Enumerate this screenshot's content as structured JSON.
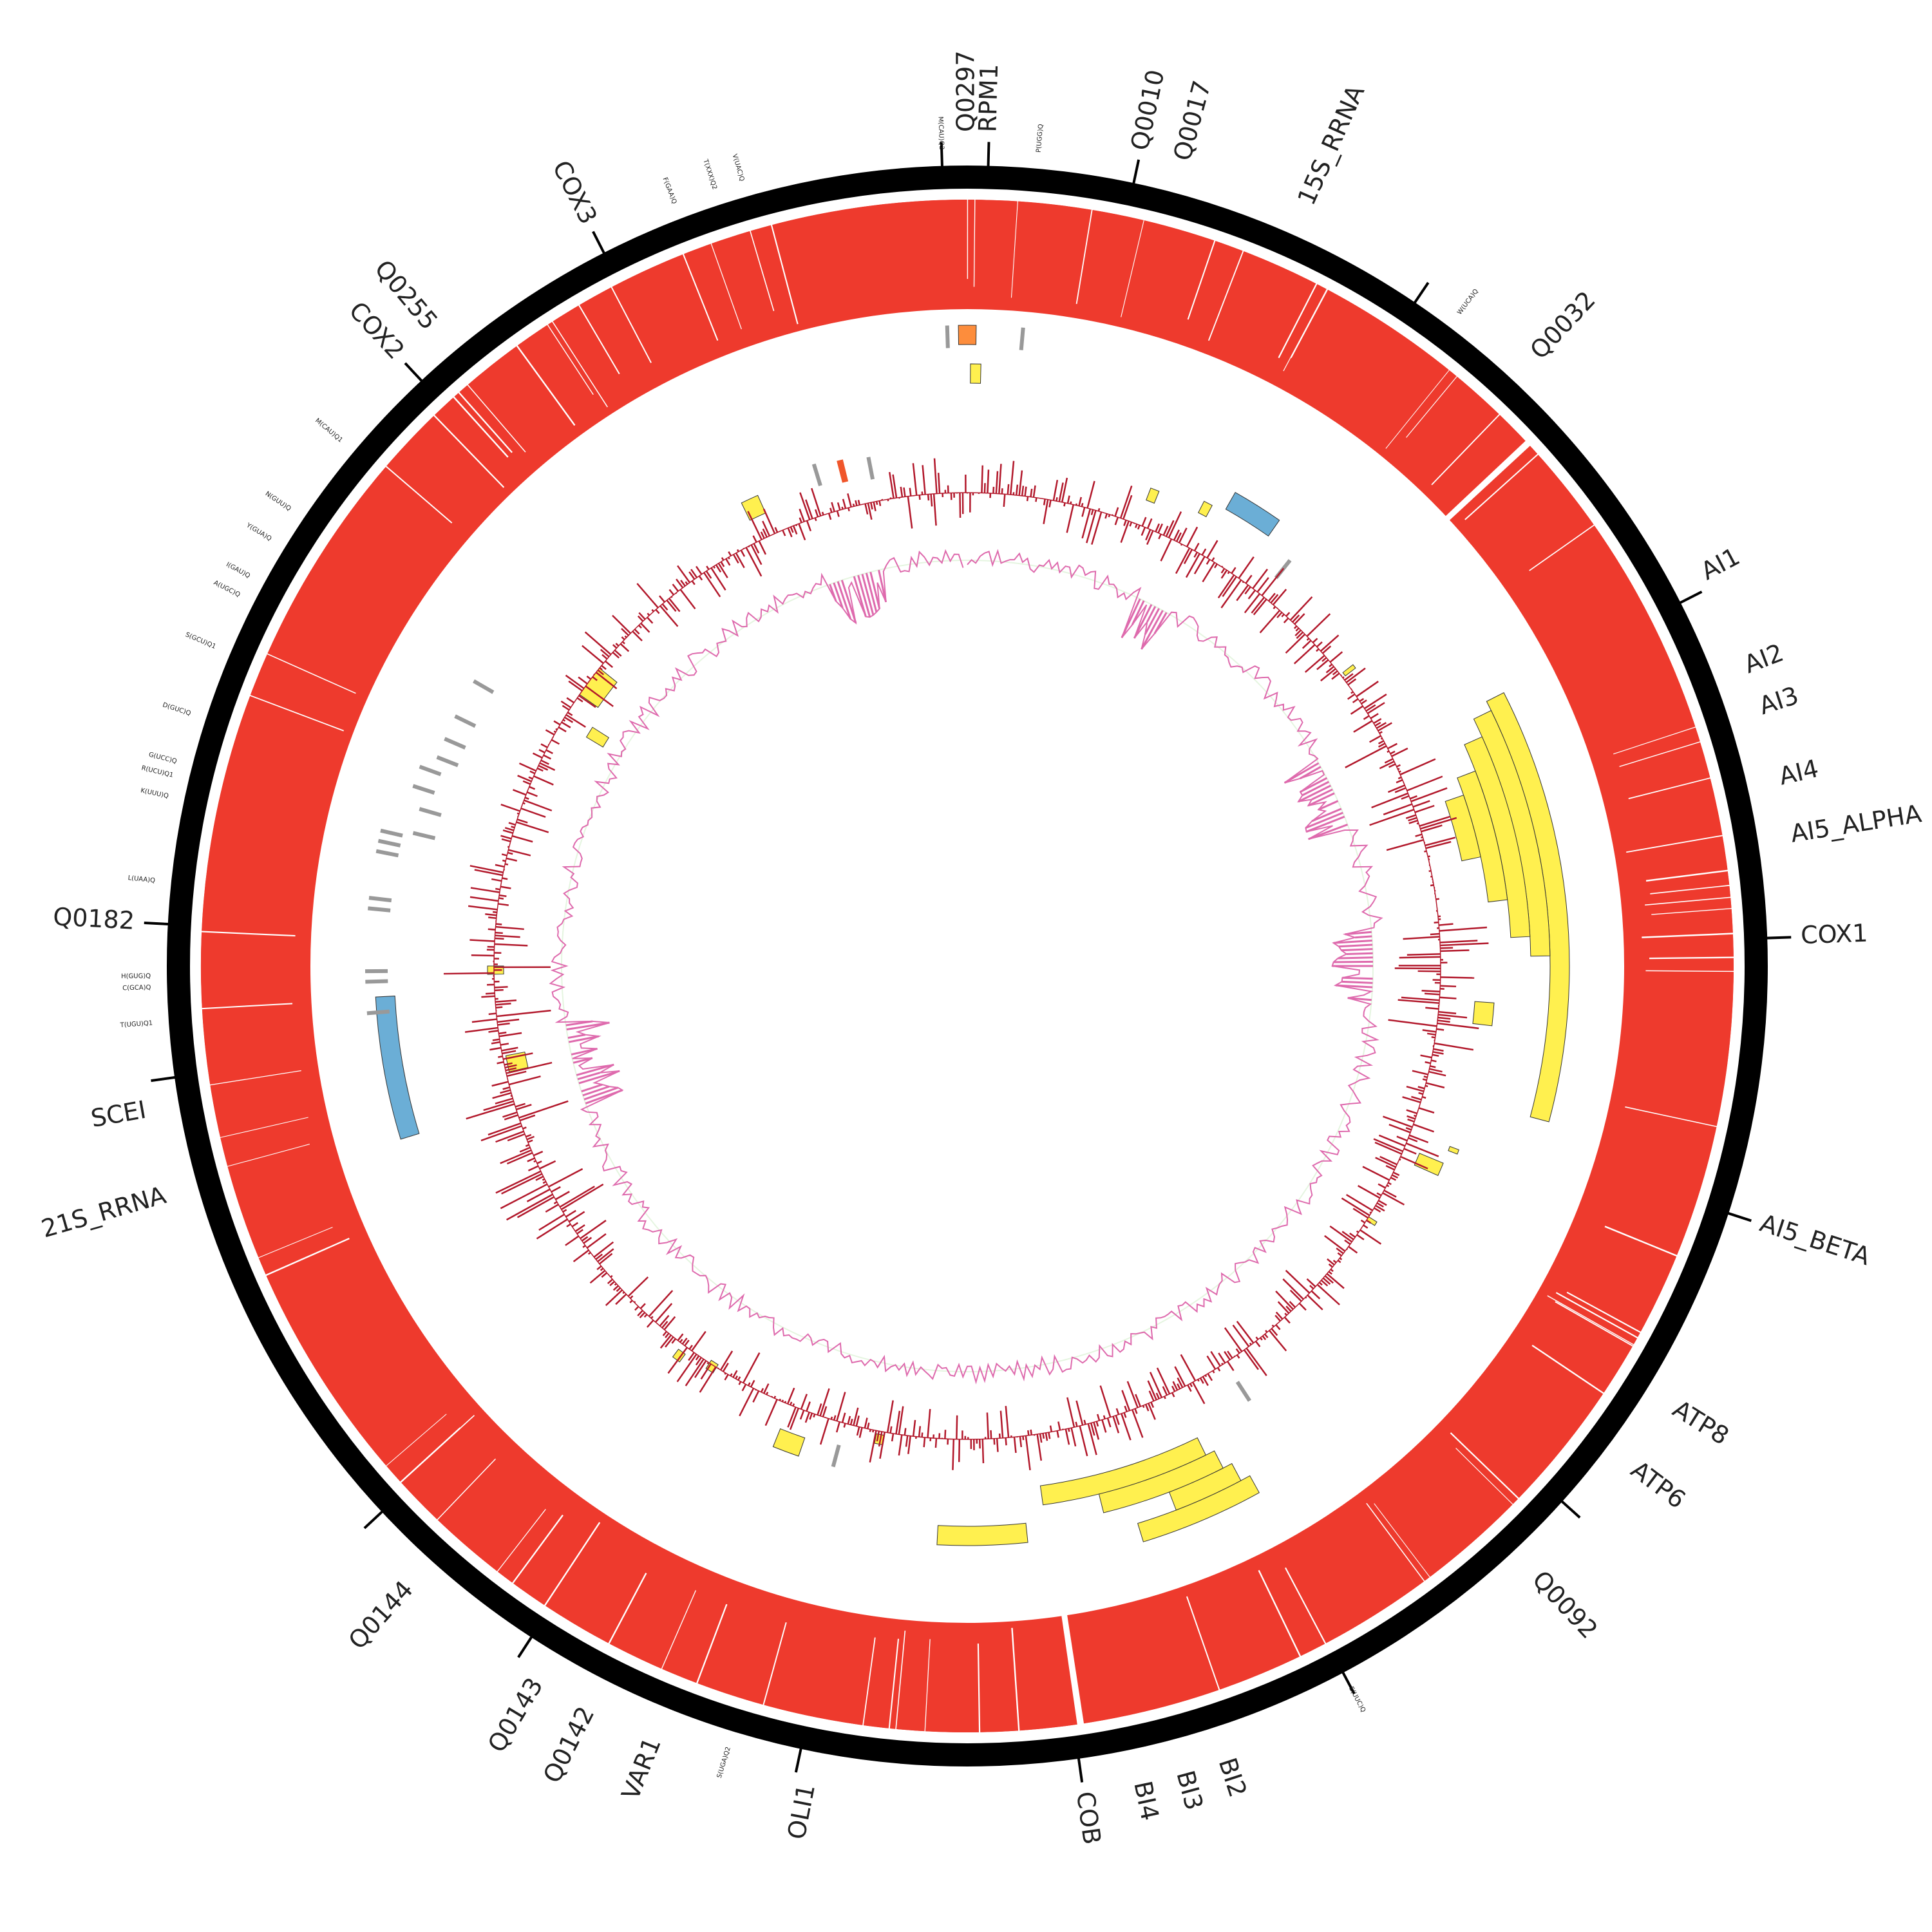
{
  "colors": {
    "ideogram": "#000000",
    "coverage": "#ee3a2d",
    "feature_yellow": "#fff04f",
    "feature_blue": "#6baed6",
    "feature_orange": "#fd8d3c",
    "feature_red": "#f0562b",
    "trna_mark": "#999999",
    "gc_skew": "#b2182b",
    "gc_content": "#de6aad",
    "gc_content_fill": "#e5f5e0"
  },
  "gene_labels": [
    {
      "text": "Q0297",
      "angle": 0
    },
    {
      "text": "RPM1",
      "angle": 1.5
    },
    {
      "text": "Q0010",
      "angle": 12
    },
    {
      "text": "Q0017",
      "angle": 15
    },
    {
      "text": "15S_RRNA",
      "angle": 24
    },
    {
      "text": "Q0032",
      "angle": 43
    },
    {
      "text": "AI1",
      "angle": 62
    },
    {
      "text": "AI2",
      "angle": 69
    },
    {
      "text": "AI3",
      "angle": 72
    },
    {
      "text": "AI4",
      "angle": 77
    },
    {
      "text": "AI5_ALPHA",
      "angle": 81
    },
    {
      "text": "COX1",
      "angle": 88
    },
    {
      "text": "AI5_BETA",
      "angle": 108
    },
    {
      "text": "ATP8",
      "angle": 122
    },
    {
      "text": "ATP6",
      "angle": 127
    },
    {
      "text": "Q0092",
      "angle": 137
    },
    {
      "text": "BI2",
      "angle": 162
    },
    {
      "text": "BI3",
      "angle": 165
    },
    {
      "text": "BI4",
      "angle": 168
    },
    {
      "text": "COB",
      "angle": 172
    },
    {
      "text": "OLI1",
      "angle": 191
    },
    {
      "text": "VAR1",
      "angle": 202
    },
    {
      "text": "Q0142",
      "angle": 207
    },
    {
      "text": "Q0143",
      "angle": 211
    },
    {
      "text": "Q0144",
      "angle": 222
    },
    {
      "text": "21S_RRNA",
      "angle": 254
    },
    {
      "text": "SCEI",
      "angle": 260
    },
    {
      "text": "Q0182",
      "angle": 273
    },
    {
      "text": "COX2",
      "angle": 317
    },
    {
      "text": "Q0255",
      "angle": 320
    },
    {
      "text": "COX3",
      "angle": 333
    }
  ],
  "trna_labels": [
    {
      "text": "M(CAU)Q2",
      "angle": 358.2
    },
    {
      "text": "P(UGG)Q",
      "angle": 5
    },
    {
      "text": "W(UCA)Q",
      "angle": 37
    },
    {
      "text": "E(UUC)Q",
      "angle": 152
    },
    {
      "text": "S(UGA)Q2",
      "angle": 197
    },
    {
      "text": "T(UGU)Q1",
      "angle": 266
    },
    {
      "text": "C(GCA)Q",
      "angle": 268.5
    },
    {
      "text": "H(GUG)Q",
      "angle": 269.3
    },
    {
      "text": "L(UAA)Q",
      "angle": 276
    },
    {
      "text": "K(UUU)Q",
      "angle": 282
    },
    {
      "text": "R(UCU)Q1",
      "angle": 283.5
    },
    {
      "text": "G(UCC)Q",
      "angle": 284.5
    },
    {
      "text": "D(GUC)Q",
      "angle": 288
    },
    {
      "text": "S(GCU)Q1",
      "angle": 293
    },
    {
      "text": "A(UGC)Q",
      "angle": 297
    },
    {
      "text": "I(GAU)Q",
      "angle": 298.5
    },
    {
      "text": "Y(GUA)Q",
      "angle": 301.5
    },
    {
      "text": "N(GUU)Q",
      "angle": 304
    },
    {
      "text": "M(CAU)Q1",
      "angle": 310
    },
    {
      "text": "F(GAA)Q",
      "angle": 339
    },
    {
      "text": "T(XXX)Q2",
      "angle": 342
    },
    {
      "text": "V(UAC)Q",
      "angle": 344
    }
  ]
}
